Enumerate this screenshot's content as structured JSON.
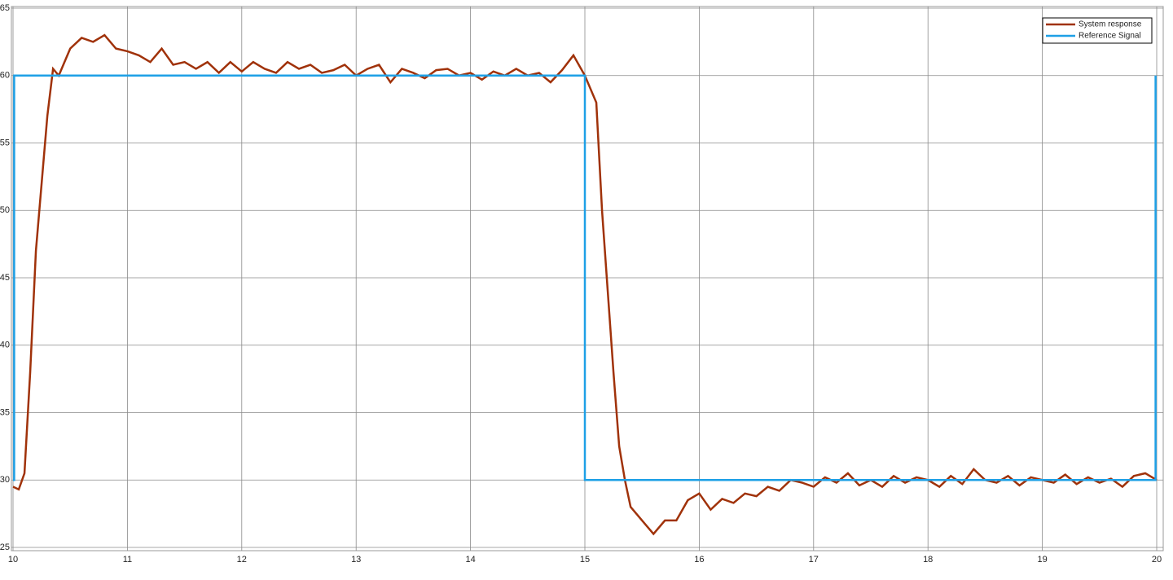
{
  "chart_data": {
    "type": "line",
    "series": [
      {
        "name": "System response",
        "color": "#a0320a",
        "x": [
          10.0,
          10.05,
          10.1,
          10.15,
          10.2,
          10.25,
          10.3,
          10.35,
          10.4,
          10.5,
          10.6,
          10.7,
          10.8,
          10.9,
          11.0,
          11.1,
          11.2,
          11.3,
          11.4,
          11.5,
          11.6,
          11.7,
          11.8,
          11.9,
          12.0,
          12.1,
          12.2,
          12.3,
          12.4,
          12.5,
          12.6,
          12.7,
          12.8,
          12.9,
          13.0,
          13.1,
          13.2,
          13.3,
          13.4,
          13.5,
          13.6,
          13.7,
          13.8,
          13.9,
          14.0,
          14.1,
          14.2,
          14.3,
          14.4,
          14.5,
          14.6,
          14.7,
          14.8,
          14.9,
          15.0,
          15.1,
          15.15,
          15.2,
          15.25,
          15.3,
          15.35,
          15.4,
          15.5,
          15.6,
          15.7,
          15.8,
          15.9,
          16.0,
          16.1,
          16.2,
          16.3,
          16.4,
          16.5,
          16.6,
          16.7,
          16.8,
          16.9,
          17.0,
          17.1,
          17.2,
          17.3,
          17.4,
          17.5,
          17.6,
          17.7,
          17.8,
          17.9,
          18.0,
          18.1,
          18.2,
          18.3,
          18.4,
          18.5,
          18.6,
          18.7,
          18.8,
          18.9,
          19.0,
          19.1,
          19.2,
          19.3,
          19.4,
          19.5,
          19.6,
          19.7,
          19.8,
          19.9,
          20.0
        ],
        "values": [
          29.5,
          29.3,
          30.5,
          38,
          47,
          52,
          57,
          60.5,
          60,
          62,
          62.8,
          62.5,
          63,
          62,
          61.8,
          61.5,
          61,
          62,
          60.8,
          61,
          60.5,
          61,
          60.2,
          61,
          60.3,
          61,
          60.5,
          60.2,
          61,
          60.5,
          60.8,
          60.2,
          60.4,
          60.8,
          60,
          60.5,
          60.8,
          59.5,
          60.5,
          60.2,
          59.8,
          60.4,
          60.5,
          60,
          60.2,
          59.7,
          60.3,
          60,
          60.5,
          60,
          60.2,
          59.5,
          60.4,
          61.5,
          60,
          58,
          50,
          44,
          38,
          32.5,
          30,
          28,
          27,
          26,
          27,
          27,
          28.5,
          29,
          27.8,
          28.6,
          28.3,
          29,
          28.8,
          29.5,
          29.2,
          30,
          29.8,
          29.5,
          30.2,
          29.8,
          30.5,
          29.6,
          30,
          29.5,
          30.3,
          29.8,
          30.2,
          30,
          29.5,
          30.3,
          29.7,
          30.8,
          30,
          29.8,
          30.3,
          29.6,
          30.2,
          30,
          29.8,
          30.4,
          29.7,
          30.2,
          29.8,
          30.1,
          29.5,
          30.3,
          30.5,
          30
        ]
      },
      {
        "name": "Reference Signal",
        "color": "#1ea0e6",
        "x": [
          10.0,
          10.01,
          10.01,
          15.0,
          15.0,
          19.99,
          19.99
        ],
        "values": [
          30,
          30,
          60,
          60,
          30,
          30,
          60
        ]
      }
    ],
    "xlim": [
      10,
      20
    ],
    "xticks": [
      10,
      11,
      12,
      13,
      14,
      15,
      16,
      17,
      18,
      19,
      20
    ],
    "ylim": [
      25,
      65
    ],
    "yticks": [
      25,
      30,
      35,
      40,
      45,
      50,
      55,
      60,
      65
    ],
    "grid": true,
    "legend": "upper-right"
  }
}
